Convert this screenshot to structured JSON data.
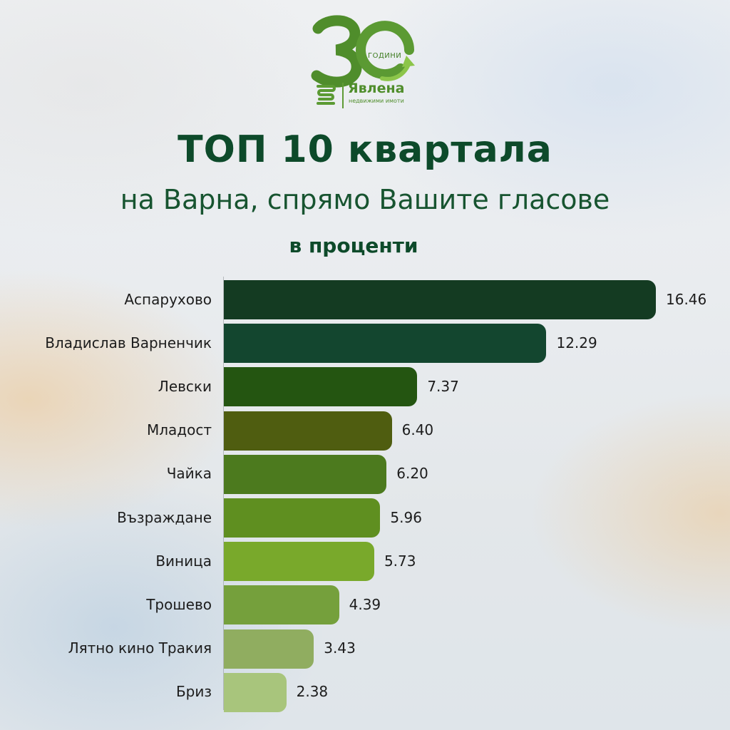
{
  "logo": {
    "number": "30",
    "years_label": "ГОДИНИ",
    "brand": "Явлена",
    "tagline": "недвижими имоти",
    "colors": {
      "primary": "#4f8d2b",
      "light": "#6faa3a"
    }
  },
  "chart_data": {
    "type": "bar",
    "orientation": "horizontal",
    "title": "ТОП 10 квартала",
    "subtitle": "на Варна, спрямо Вашите гласове",
    "unit_label": "в проценти",
    "categories": [
      "Аспарухово",
      "Владислав Варненчик",
      "Левски",
      "Младост",
      "Чайка",
      "Възраждане",
      "Виница",
      "Трошево",
      "Лятно кино Тракия",
      "Бриз"
    ],
    "values": [
      16.46,
      12.29,
      7.37,
      6.4,
      6.2,
      5.96,
      5.73,
      4.39,
      3.43,
      2.38
    ],
    "value_labels": [
      "16.46",
      "12.29",
      "7.37",
      "6.40",
      "6.20",
      "5.96",
      "5.73",
      "4.39",
      "3.43",
      "2.38"
    ],
    "bar_colors": [
      "#143b22",
      "#13462f",
      "#245511",
      "#4f5d10",
      "#4c7a1e",
      "#5f8f20",
      "#79a92b",
      "#75a03c",
      "#90ad60",
      "#a8c57c"
    ],
    "xlim": [
      0,
      16.46
    ],
    "grid": false,
    "legend": "none",
    "data_labels": "outside-end"
  }
}
